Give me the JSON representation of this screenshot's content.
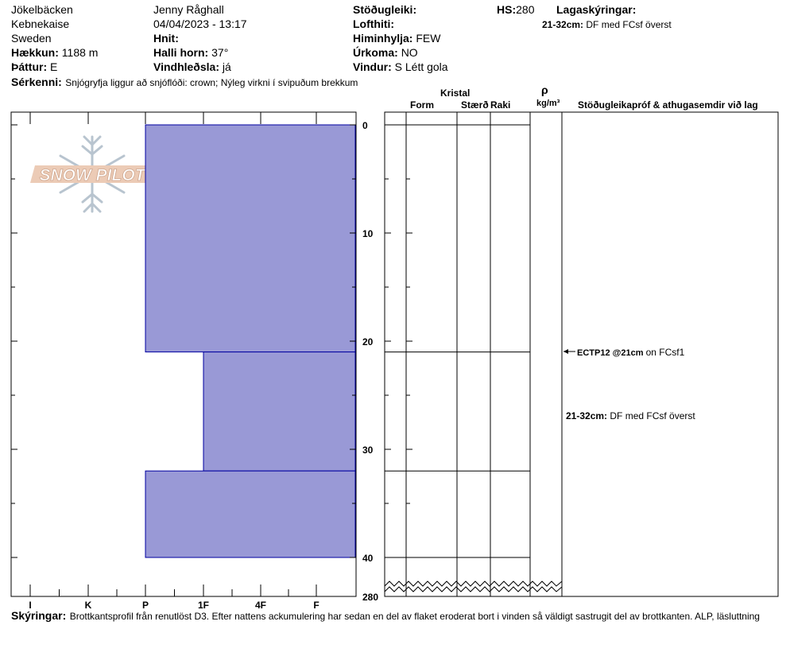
{
  "header": {
    "location": "Jökelbäcken",
    "region": "Kebnekaise",
    "country": "Sweden",
    "elevation_label": "Hækkun:",
    "elevation_value": "1188 m",
    "aspect_label": "Þáttur:",
    "aspect_value": "E",
    "observer": "Jenny Råghall",
    "datetime": "04/04/2023 - 13:17",
    "coords_label": "Hnit:",
    "slope_label": "Halli horn:",
    "slope_value": "37°",
    "wind_loading_label": "Vindhleðsla:",
    "wind_loading_value": "já",
    "stability_label": "Stöðugleiki:",
    "air_temp_label": "Lofthiti:",
    "sky_label": "Himinhylja:",
    "sky_value": "FEW",
    "precip_label": "Úrkoma:",
    "precip_value": "NO",
    "wind_label": "Vindur:",
    "wind_value": "S  Létt gola",
    "hs_label": "HS:",
    "hs_value": "280",
    "layer_notes_title": "Lagaskýringar:",
    "layer_notes_range": "21-32cm:",
    "layer_notes_text": "DF med FCsf överst",
    "features_label": "Sérkenni:",
    "features_text": "Snjógryfja liggur að snjóflóði: crown; Nýleg virkni í svipuðum brekkum"
  },
  "columns": {
    "crystal": "Kristal",
    "form": "Form",
    "size": "Stærð",
    "moisture": "Raki",
    "rho": "ρ",
    "density_unit": "kg/m³",
    "stability_header": "Stöðugleikapróf & athugasemdir við lag"
  },
  "logo_text": "SNOW PILOT",
  "annotations": {
    "test_result": "ECTP12 @21cm",
    "test_layer": "on FCsf1",
    "layer_range": "21-32cm:",
    "layer_text": "DF med FCsf överst"
  },
  "footer": {
    "label": "Skýringar:",
    "text": "Brottkantsprofil från renutlöst D3. Efter nattens ackumulering har sedan en del av flaket eroderat bort i vinden så väldigt sastrugit del av brottkanten. ALP, läsluttning"
  },
  "colors": {
    "layer_fill": "#9999d6",
    "layer_stroke": "#0000a0"
  },
  "chart_data": {
    "type": "bar",
    "title": "",
    "xlabel": "",
    "ylabel": "",
    "hardness_scale": [
      "I",
      "K",
      "P",
      "1F",
      "4F",
      "F"
    ],
    "depth_ticks": [
      0,
      10,
      20,
      30,
      40
    ],
    "depth_bottom_label": "280",
    "ylim": [
      0,
      40
    ],
    "layers": [
      {
        "top": 0,
        "bottom": 21,
        "hardness": "P"
      },
      {
        "top": 21,
        "bottom": 32,
        "hardness": "1F"
      },
      {
        "top": 32,
        "bottom": 40,
        "hardness": "P"
      }
    ],
    "layer_boundaries": [
      0,
      21,
      32,
      40
    ],
    "stability_test": {
      "depth": 21,
      "result": "ECTP12 @21cm",
      "layer": "on FCsf1"
    }
  }
}
